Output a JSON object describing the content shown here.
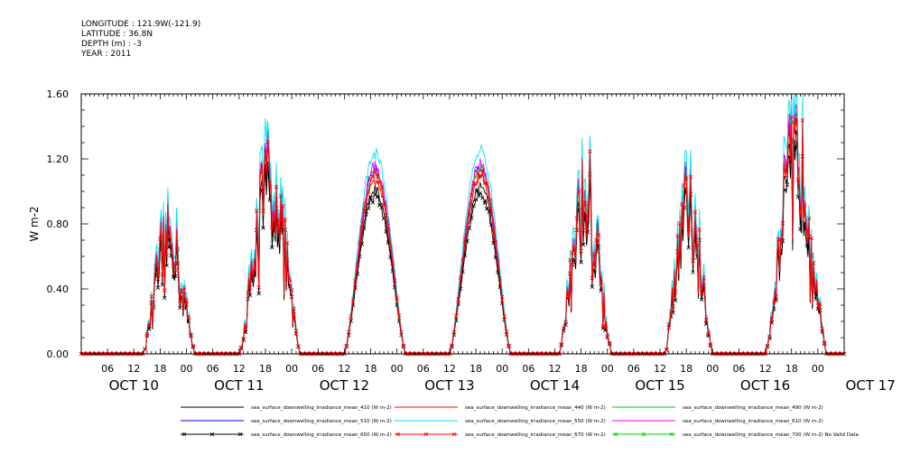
{
  "meta": {
    "longitude": "LONGITUDE : 121.9W(-121.9)",
    "latitude": "LATITUDE : 36.8N",
    "depth": "DEPTH (m) : -3",
    "year": "YEAR : 2011"
  },
  "chart_data": {
    "type": "line",
    "ylabel": "W m-2",
    "ylim": [
      0.0,
      1.6
    ],
    "yticks": [
      "0.00",
      "0.40",
      "0.80",
      "1.20",
      "1.60"
    ],
    "x_hour_range": [
      0,
      174
    ],
    "x_hour_ticks": [
      "06",
      "12",
      "18",
      "00",
      "06",
      "12",
      "18",
      "00",
      "06",
      "12",
      "18",
      "00",
      "06",
      "12",
      "18",
      "00",
      "06",
      "12",
      "18",
      "00",
      "06",
      "12",
      "18",
      "00",
      "06",
      "12",
      "18",
      "00"
    ],
    "x_date_labels": [
      "OCT 10",
      "OCT 11",
      "OCT 12",
      "OCT 13",
      "OCT 14",
      "OCT 15",
      "OCT 16",
      "OCT 17"
    ],
    "grid": false,
    "days": [
      {
        "date": "OCT 10",
        "start_hour": 14,
        "end_hour": 26,
        "peak": 0.75,
        "irregular": true
      },
      {
        "date": "OCT 11",
        "start_hour": 12,
        "end_hour": 26,
        "peak": 1.1,
        "irregular": true
      },
      {
        "date": "OCT 12",
        "start_hour": 12,
        "end_hour": 26,
        "peak": 1.1,
        "irregular": false
      },
      {
        "date": "OCT 13",
        "start_hour": 12,
        "end_hour": 26,
        "peak": 1.12,
        "irregular": false
      },
      {
        "date": "OCT 14",
        "start_hour": 13,
        "end_hour": 25,
        "peak": 1.05,
        "irregular": true
      },
      {
        "date": "OCT 15",
        "start_hour": 13,
        "end_hour": 24,
        "peak": 0.95,
        "irregular": true
      },
      {
        "date": "OCT 16",
        "start_hour": 12,
        "end_hour": 26,
        "peak": 1.25,
        "irregular": true
      }
    ],
    "series": [
      {
        "name": "sea_surface_downwelling_irradiance_mean_410 (W m-2)",
        "color": "#000000",
        "scale": 0.92,
        "marker": "none"
      },
      {
        "name": "sea_surface_downwelling_irradiance_mean_440 (W m-2)",
        "color": "#ff0000",
        "scale": 0.97,
        "marker": "none"
      },
      {
        "name": "sea_surface_downwelling_irradiance_mean_490 (W m-2)",
        "color": "#00cc00",
        "scale": 1.02,
        "marker": "none"
      },
      {
        "name": "sea_surface_downwelling_irradiance_mean_510 (W m-2)",
        "color": "#0000ff",
        "scale": 1.03,
        "marker": "none"
      },
      {
        "name": "sea_surface_downwelling_irradiance_mean_550 (W m-2)",
        "color": "#00e5ee",
        "scale": 1.12,
        "marker": "none"
      },
      {
        "name": "sea_surface_downwelling_irradiance_mean_610 (W m-2)",
        "color": "#ff00ff",
        "scale": 1.05,
        "marker": "none"
      },
      {
        "name": "sea_surface_downwelling_irradiance_mean_650 (W m-2)",
        "color": "#000000",
        "scale": 0.88,
        "marker": "x"
      },
      {
        "name": "sea_surface_downwelling_irradiance_mean_670 (W m-2)",
        "color": "#ff0000",
        "scale": 0.99,
        "marker": "x"
      },
      {
        "name": "sea_surface_downwelling_irradiance_mean_700 (W m-2) No Valid Data",
        "color": "#00cc00",
        "scale": 0,
        "marker": "x"
      }
    ]
  }
}
